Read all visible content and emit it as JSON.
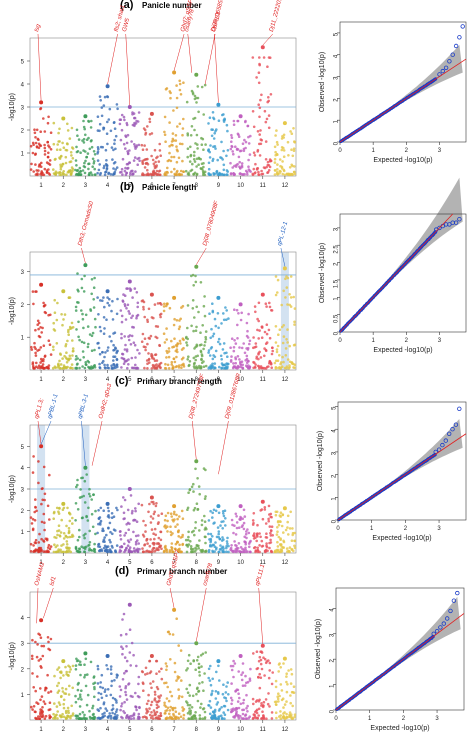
{
  "panels": [
    {
      "letter": "(a)",
      "title": "Panicle number",
      "manhattan": {
        "ylabel": "-log10(p)",
        "ylim": [
          0,
          6
        ],
        "yticks": [
          1,
          2,
          3,
          4,
          5
        ],
        "threshold": 3.0,
        "chromosomes": [
          "1",
          "2",
          "3",
          "4",
          "5",
          "6",
          "7",
          "8",
          "9",
          "10",
          "11",
          "12"
        ],
        "peaks": [
          {
            "chr": 1,
            "y": 3.2
          },
          {
            "chr": 2,
            "y": 2.5
          },
          {
            "chr": 3,
            "y": 2.6
          },
          {
            "chr": 4,
            "y": 3.9
          },
          {
            "chr": 5,
            "y": 3.0
          },
          {
            "chr": 6,
            "y": 2.7
          },
          {
            "chr": 7,
            "y": 4.5
          },
          {
            "chr": 8,
            "y": 4.4
          },
          {
            "chr": 9,
            "y": 3.1
          },
          {
            "chr": 10,
            "y": 2.6
          },
          {
            "chr": 11,
            "y": 5.6
          },
          {
            "chr": 12,
            "y": 2.3
          }
        ],
        "annotations": [
          {
            "text": "lsg",
            "chr": 1,
            "y": 3.2,
            "color": "#e02020"
          },
          {
            "text": "fls2; shat1",
            "chr": 4,
            "y": 3.9,
            "color": "#e02020"
          },
          {
            "text": "GW5",
            "chr": 5,
            "y": 3.0,
            "color": "#e02020"
          },
          {
            "text": "Ghd7; qSSP7",
            "chr": 7,
            "y": 4.5,
            "color": "#e02020"
          },
          {
            "text": "osarfy78",
            "chr": 7.8,
            "y": 4.4,
            "color": "#e02020"
          },
          {
            "text": "OsFIE1",
            "chr": 8.4,
            "y": 3.9,
            "color": "#e02020"
          },
          {
            "text": "Dj09_06585999R",
            "chr": 9,
            "y": 3.1,
            "color": "#e02020"
          },
          {
            "text": "Dj11_22220105R",
            "chr": 11,
            "y": 5.6,
            "color": "#e02020"
          }
        ]
      },
      "qq": {
        "xlabel": "Expected -log10(p)",
        "ylabel": "Observed -log10(p)",
        "xlim": [
          0,
          3.8
        ],
        "ylim": [
          0,
          5.5
        ],
        "xticks": [
          0,
          1,
          2,
          3
        ],
        "yticks": [
          0,
          1,
          2,
          3,
          4,
          5
        ],
        "tail": [
          [
            3.0,
            3.1
          ],
          [
            3.1,
            3.25
          ],
          [
            3.2,
            3.4
          ],
          [
            3.3,
            3.7
          ],
          [
            3.4,
            4.0
          ],
          [
            3.5,
            4.4
          ],
          [
            3.6,
            4.8
          ],
          [
            3.7,
            5.3
          ]
        ]
      }
    },
    {
      "letter": "(b)",
      "title": "Panicle length",
      "manhattan": {
        "ylabel": "-log10(p)",
        "ylim": [
          0,
          3.6
        ],
        "yticks": [
          1,
          2,
          3
        ],
        "threshold": 2.9,
        "highlight_chr": [
          12
        ],
        "chromosomes": [
          "1",
          "2",
          "3",
          "4",
          "5",
          "6",
          "7",
          "8",
          "9",
          "10",
          "11",
          "12"
        ],
        "peaks": [
          {
            "chr": 1,
            "y": 2.6
          },
          {
            "chr": 2,
            "y": 2.4
          },
          {
            "chr": 3,
            "y": 3.2
          },
          {
            "chr": 4,
            "y": 2.4
          },
          {
            "chr": 5,
            "y": 2.7
          },
          {
            "chr": 6,
            "y": 2.3
          },
          {
            "chr": 7,
            "y": 2.2
          },
          {
            "chr": 8,
            "y": 3.15
          },
          {
            "chr": 9,
            "y": 2.2
          },
          {
            "chr": 10,
            "y": 2.0
          },
          {
            "chr": 11,
            "y": 2.3
          },
          {
            "chr": 12,
            "y": 3.1
          }
        ],
        "annotations": [
          {
            "text": "Dth3; OsmadsS0",
            "chr": 3,
            "y": 3.2,
            "color": "#e02020"
          },
          {
            "text": "Dj08_07804908F",
            "chr": 8,
            "y": 3.15,
            "color": "#e02020"
          },
          {
            "text": "qPL-12-1",
            "chr": 12,
            "y": 3.1,
            "color": "#2060c0"
          }
        ]
      },
      "qq": {
        "xlabel": "Expected -log10(p)",
        "ylabel": "Observed -log10(p)",
        "xlim": [
          0,
          3.8
        ],
        "ylim": [
          0,
          3.4
        ],
        "xticks": [
          0,
          1,
          2,
          3
        ],
        "yticks": [
          0,
          0.5,
          1.0,
          1.5,
          2.0,
          2.5,
          3.0
        ],
        "tail": [
          [
            2.9,
            2.95
          ],
          [
            3.0,
            3.0
          ],
          [
            3.1,
            3.05
          ],
          [
            3.2,
            3.1
          ],
          [
            3.3,
            3.1
          ],
          [
            3.4,
            3.15
          ],
          [
            3.5,
            3.15
          ],
          [
            3.6,
            3.25
          ]
        ]
      }
    },
    {
      "letter": "(c)",
      "title": "Primary branch length",
      "manhattan": {
        "ylabel": "-log10(p)",
        "ylim": [
          0,
          6
        ],
        "yticks": [
          1,
          2,
          3,
          4,
          5
        ],
        "threshold": 3.0,
        "highlight_chr": [
          1,
          3
        ],
        "chromosomes": [
          "1",
          "2",
          "3",
          "4",
          "5",
          "6",
          "7",
          "8",
          "9",
          "10",
          "11",
          "12"
        ],
        "peaks": [
          {
            "chr": 1,
            "y": 5.0
          },
          {
            "chr": 2,
            "y": 2.3
          },
          {
            "chr": 3,
            "y": 4.0
          },
          {
            "chr": 4,
            "y": 2.3
          },
          {
            "chr": 5,
            "y": 3.0
          },
          {
            "chr": 6,
            "y": 2.6
          },
          {
            "chr": 7,
            "y": 2.2
          },
          {
            "chr": 8,
            "y": 4.3
          },
          {
            "chr": 9,
            "y": 2.2
          },
          {
            "chr": 10,
            "y": 2.2
          },
          {
            "chr": 11,
            "y": 2.4
          },
          {
            "chr": 12,
            "y": 2.1
          }
        ],
        "annotations": [
          {
            "text": "qPL1.3;",
            "chr": 1,
            "y": 5.0,
            "color": "#e02020"
          },
          {
            "text": "qPBL-1-1",
            "chr": 1,
            "y": 5.0,
            "color": "#2060c0"
          },
          {
            "text": "qPBL-3-1",
            "chr": 3,
            "y": 4.0,
            "color": "#2060c0"
          },
          {
            "text": "OsdH2; qDs3",
            "chr": 3.3,
            "y": 4.0,
            "color": "#e02020"
          },
          {
            "text": "Dj08_27249778F",
            "chr": 8,
            "y": 4.3,
            "color": "#e02020"
          },
          {
            "text": "Dj09_01286768R",
            "chr": 9,
            "y": 3.6,
            "color": "#e02020"
          }
        ]
      },
      "qq": {
        "xlabel": "Expected -log10(p)",
        "ylabel": "Observed -log10(p)",
        "xlim": [
          0,
          3.8
        ],
        "ylim": [
          0,
          5.2
        ],
        "xticks": [
          0,
          1,
          2,
          3
        ],
        "yticks": [
          0,
          1,
          2,
          3,
          4,
          5
        ],
        "tail": [
          [
            2.9,
            3.0
          ],
          [
            3.0,
            3.1
          ],
          [
            3.1,
            3.3
          ],
          [
            3.2,
            3.5
          ],
          [
            3.3,
            3.8
          ],
          [
            3.4,
            4.0
          ],
          [
            3.5,
            4.2
          ],
          [
            3.6,
            4.9
          ]
        ]
      }
    },
    {
      "letter": "(d)",
      "title": "Primary branch number",
      "manhattan": {
        "ylabel": "-log10(p)",
        "ylim": [
          0,
          5
        ],
        "yticks": [
          1,
          2,
          3,
          4
        ],
        "threshold": 3.0,
        "chromosomes": [
          "1",
          "2",
          "3",
          "4",
          "5",
          "6",
          "7",
          "8",
          "9",
          "10",
          "11",
          "12"
        ],
        "peaks": [
          {
            "chr": 1,
            "y": 3.9
          },
          {
            "chr": 2,
            "y": 2.3
          },
          {
            "chr": 3,
            "y": 2.6
          },
          {
            "chr": 4,
            "y": 2.5
          },
          {
            "chr": 5,
            "y": 4.5
          },
          {
            "chr": 6,
            "y": 2.5
          },
          {
            "chr": 7,
            "y": 4.3
          },
          {
            "chr": 8,
            "y": 3.0
          },
          {
            "chr": 9,
            "y": 2.3
          },
          {
            "chr": 10,
            "y": 2.5
          },
          {
            "chr": 11,
            "y": 2.9
          },
          {
            "chr": 12,
            "y": 2.4
          }
        ],
        "annotations": [
          {
            "text": "OsNAM2",
            "chr": 0.8,
            "y": 3.7,
            "color": "#e02020"
          },
          {
            "text": "lsf1",
            "chr": 1.1,
            "y": 3.9,
            "color": "#e02020"
          },
          {
            "text": "Ghd7; qSSP7",
            "chr": 7,
            "y": 4.3,
            "color": "#e02020"
          },
          {
            "text": "osarfy78",
            "chr": 8,
            "y": 3.0,
            "color": "#e02020"
          },
          {
            "text": "qPL11.1",
            "chr": 11,
            "y": 2.9,
            "color": "#e02020"
          }
        ]
      },
      "qq": {
        "xlabel": "Expected -log10(p)",
        "ylabel": "Observed -log10(p)",
        "xlim": [
          0,
          3.8
        ],
        "ylim": [
          0,
          4.8
        ],
        "xticks": [
          0,
          1,
          2,
          3
        ],
        "yticks": [
          0,
          1,
          2,
          3,
          4
        ],
        "tail": [
          [
            2.9,
            3.0
          ],
          [
            3.0,
            3.1
          ],
          [
            3.1,
            3.25
          ],
          [
            3.2,
            3.4
          ],
          [
            3.3,
            3.6
          ],
          [
            3.4,
            3.9
          ],
          [
            3.5,
            4.3
          ],
          [
            3.6,
            4.6
          ]
        ]
      }
    }
  ],
  "colors": {
    "chromosomes": [
      "#d73027",
      "#c8c13a",
      "#3e9c5a",
      "#3b6eb5",
      "#9b59b6",
      "#d9534f",
      "#e0a030",
      "#6aa84f",
      "#3c9dd0",
      "#c060c0",
      "#e8505b",
      "#e6c84a"
    ],
    "threshold_line": "#7fb0d8",
    "qq_points": "#1a3cc8",
    "qq_expected_line": "#e02020",
    "qq_band": "#a0a0a0"
  }
}
